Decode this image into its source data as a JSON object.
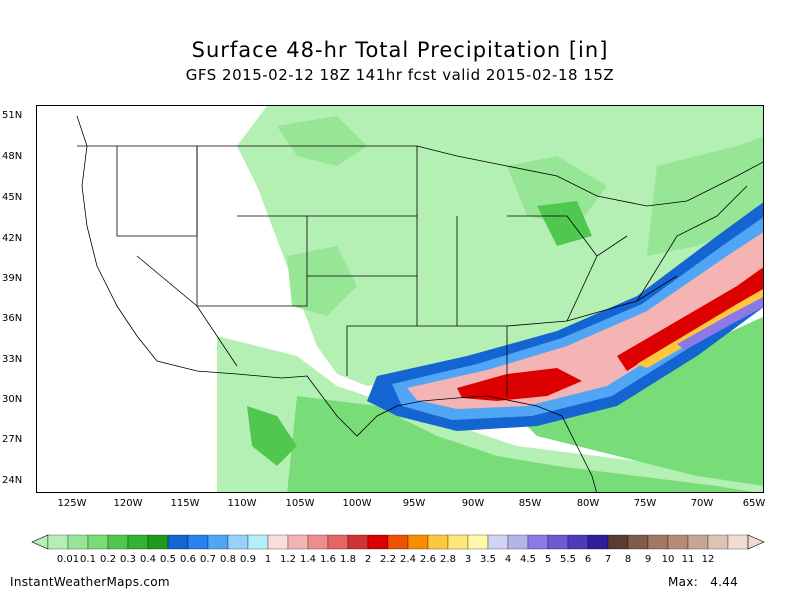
{
  "title": "Surface 48-hr Total Precipitation [in]",
  "subtitle": "GFS 2015-02-12 18Z 141hr fcst valid 2015-02-18 15Z",
  "lat_labels": [
    "51N",
    "48N",
    "45N",
    "42N",
    "39N",
    "36N",
    "33N",
    "30N",
    "27N",
    "24N"
  ],
  "lon_labels": [
    "125W",
    "120W",
    "115W",
    "110W",
    "105W",
    "100W",
    "95W",
    "90W",
    "85W",
    "80W",
    "75W",
    "70W",
    "65W"
  ],
  "scale": {
    "labels": [
      "0.01",
      "0.1",
      "0.2",
      "0.3",
      "0.4",
      "0.5",
      "0.6",
      "0.7",
      "0.8",
      "0.9",
      "1",
      "1.2",
      "1.4",
      "1.6",
      "1.8",
      "2",
      "2.2",
      "2.4",
      "2.6",
      "2.8",
      "3",
      "3.5",
      "4",
      "4.5",
      "5",
      "5.5",
      "6",
      "7",
      "8",
      "9",
      "10",
      "11",
      "12"
    ],
    "colors": [
      "#b4f0b4",
      "#96e696",
      "#78dc78",
      "#50c850",
      "#32b432",
      "#1e9b1e",
      "#1464d2",
      "#2882f0",
      "#50a5f5",
      "#96d2fa",
      "#b4f0fa",
      "#fadcdc",
      "#f5b4b4",
      "#f08c8c",
      "#e66464",
      "#d23232",
      "#dc0000",
      "#f05000",
      "#fa8c00",
      "#ffc83c",
      "#ffe678",
      "#fffaaa",
      "#d2d2f5",
      "#b4b4eb",
      "#8c78e6",
      "#6e5ad2",
      "#4b3cbe",
      "#2d1e9b",
      "#5a3c32",
      "#825a4b",
      "#a07864",
      "#b48c78",
      "#c8a596",
      "#dcc3b4",
      "#f0dcd2"
    ]
  },
  "footer": {
    "site": "InstantWeatherMaps.com",
    "max_label": "Max:",
    "max_value": "4.44"
  }
}
